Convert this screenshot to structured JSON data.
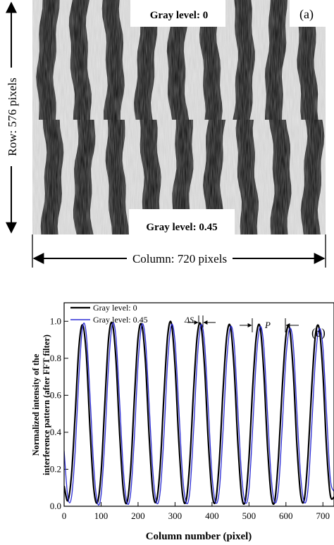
{
  "panel_a": {
    "label": "(a)",
    "top_label": "Gray level: 0",
    "bottom_label": "Gray level: 0.45",
    "row_label": "Row: 576 pixels",
    "column_label": "Column: 720 pixels",
    "fringe_period_pixels": 80,
    "fringe_shift_pixels": 10
  },
  "chart_data": {
    "type": "line",
    "panel_label": "(b)",
    "xlabel": "Column number (pixel)",
    "ylabel_lines": [
      "Normalized intensity of the",
      "interference pattern (after FFT filter)"
    ],
    "xlim": [
      0,
      730
    ],
    "ylim": [
      0.0,
      1.1
    ],
    "x_ticks": [
      0,
      100,
      200,
      300,
      400,
      500,
      600,
      700
    ],
    "x_tick_labels": [
      "0",
      "100",
      "200",
      "300",
      "400",
      "500",
      "600",
      "700"
    ],
    "y_ticks": [
      0.0,
      0.2,
      0.4,
      0.6,
      0.8,
      1.0
    ],
    "y_tick_labels": [
      "0.0",
      "0.2",
      "0.4",
      "0.6",
      "0.8",
      "1.0"
    ],
    "legend_position": "top-left",
    "annotations": [
      {
        "text": "ΔS",
        "x": 360,
        "y": 1.05
      },
      {
        "text": "P",
        "x": 555,
        "y": 1.01
      }
    ],
    "series": [
      {
        "name": "Gray level: 0",
        "color": "#000000",
        "x": [
          0,
          10,
          20,
          30,
          40,
          50,
          60,
          70,
          80,
          90,
          100,
          110,
          120,
          130,
          140,
          150,
          160,
          170,
          180,
          190,
          200,
          210,
          220,
          230,
          240,
          250,
          260,
          270,
          280,
          290,
          300,
          310,
          320,
          330,
          340,
          350,
          360,
          370,
          380,
          390,
          400,
          410,
          420,
          430,
          440,
          450,
          460,
          470,
          480,
          490,
          500,
          510,
          520,
          530,
          540,
          550,
          560,
          570,
          580,
          590,
          600,
          610,
          620,
          630,
          640,
          650,
          660,
          670,
          680,
          690,
          700,
          710,
          720,
          730
        ],
        "y": [
          0.11,
          0.03,
          0.17,
          0.5,
          0.86,
          0.98,
          0.82,
          0.42,
          0.1,
          0.02,
          0.18,
          0.55,
          0.9,
          0.99,
          0.8,
          0.4,
          0.09,
          0.02,
          0.2,
          0.58,
          0.91,
          0.98,
          0.78,
          0.38,
          0.08,
          0.03,
          0.22,
          0.6,
          0.92,
          0.99,
          0.76,
          0.36,
          0.07,
          0.03,
          0.24,
          0.62,
          0.92,
          0.98,
          0.75,
          0.35,
          0.07,
          0.03,
          0.25,
          0.63,
          0.92,
          0.97,
          0.74,
          0.34,
          0.06,
          0.03,
          0.26,
          0.64,
          0.92,
          0.97,
          0.73,
          0.33,
          0.06,
          0.03,
          0.27,
          0.64,
          0.92,
          0.96,
          0.72,
          0.32,
          0.06,
          0.04,
          0.28,
          0.65,
          0.93,
          0.96,
          0.72,
          0.31,
          0.06,
          0.05
        ]
      },
      {
        "name": "Gray level: 0.45",
        "color": "#2b2bd6",
        "x": [
          0,
          10,
          20,
          30,
          40,
          50,
          60,
          70,
          80,
          90,
          100,
          110,
          120,
          130,
          140,
          150,
          160,
          170,
          180,
          190,
          200,
          210,
          220,
          230,
          240,
          250,
          260,
          270,
          280,
          290,
          300,
          310,
          320,
          330,
          340,
          350,
          360,
          370,
          380,
          390,
          400,
          410,
          420,
          430,
          440,
          450,
          460,
          470,
          480,
          490,
          500,
          510,
          520,
          530,
          540,
          550,
          560,
          570,
          580,
          590,
          600,
          610,
          620,
          630,
          640,
          650,
          660,
          670,
          680,
          690,
          700,
          710,
          720,
          730
        ],
        "y": [
          0.3,
          0.05,
          0.05,
          0.3,
          0.7,
          0.97,
          0.93,
          0.6,
          0.22,
          0.02,
          0.06,
          0.35,
          0.75,
          0.98,
          0.92,
          0.57,
          0.2,
          0.02,
          0.07,
          0.37,
          0.77,
          0.98,
          0.9,
          0.55,
          0.19,
          0.02,
          0.08,
          0.38,
          0.78,
          0.98,
          0.89,
          0.54,
          0.18,
          0.02,
          0.08,
          0.4,
          0.79,
          0.98,
          0.88,
          0.53,
          0.17,
          0.02,
          0.09,
          0.41,
          0.79,
          0.97,
          0.88,
          0.52,
          0.17,
          0.02,
          0.09,
          0.42,
          0.8,
          0.97,
          0.87,
          0.51,
          0.16,
          0.02,
          0.1,
          0.43,
          0.8,
          0.96,
          0.87,
          0.5,
          0.16,
          0.02,
          0.1,
          0.44,
          0.8,
          0.96,
          0.86,
          0.5,
          0.15,
          0.08
        ]
      }
    ]
  }
}
